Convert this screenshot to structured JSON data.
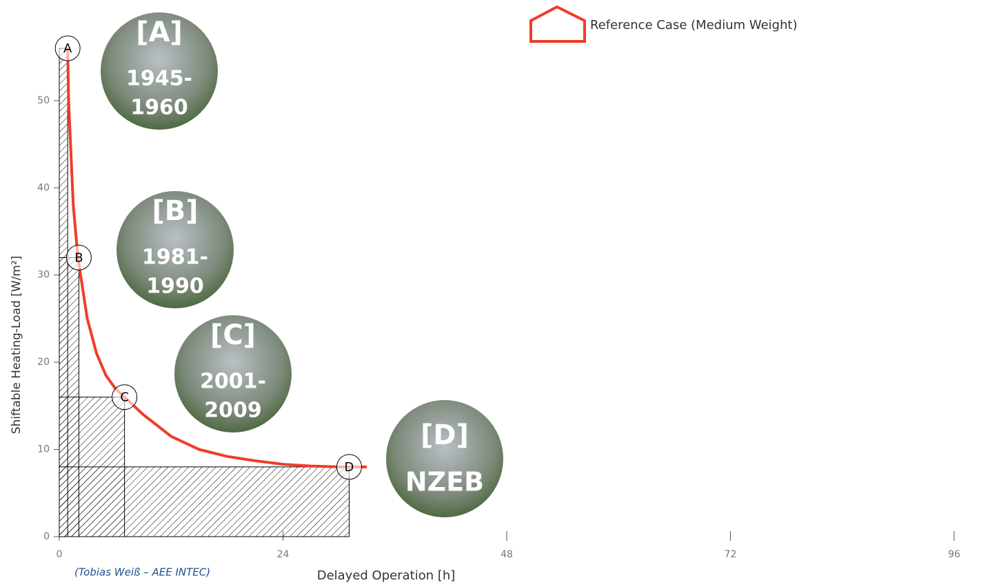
{
  "chart_data": {
    "type": "line",
    "xlabel": "Delayed Operation [h]",
    "ylabel": "Shiftable Heating-Load [W/m²]",
    "xlim": [
      0,
      96
    ],
    "xticks": [
      0,
      24,
      48,
      72,
      96
    ],
    "ylim": [
      0,
      56
    ],
    "yticks": [
      0,
      10,
      20,
      30,
      40,
      50
    ],
    "series": [
      {
        "name": "Reference Case (Medium Weight)",
        "color": "#f03c28",
        "x": [
          0.9,
          1,
          1.5,
          2,
          3,
          4,
          5,
          6,
          7,
          9,
          12,
          15,
          18,
          21,
          24,
          27,
          30,
          33
        ],
        "values": [
          56,
          50,
          38,
          32,
          25,
          21,
          18.5,
          17,
          16,
          14,
          11.5,
          10,
          9.2,
          8.7,
          8.3,
          8.1,
          8.0,
          8.0
        ]
      }
    ],
    "points": [
      {
        "label": "A",
        "x": 0.9,
        "y": 56
      },
      {
        "label": "B",
        "x": 2.1,
        "y": 32
      },
      {
        "label": "C",
        "x": 7,
        "y": 16
      },
      {
        "label": "D",
        "x": 31.1,
        "y": 8
      }
    ],
    "photos": [
      {
        "tag": "[A]",
        "lines": [
          "1945-",
          "1960"
        ]
      },
      {
        "tag": "[B]",
        "lines": [
          "1981-",
          "1990"
        ]
      },
      {
        "tag": "[C]",
        "lines": [
          "2001-",
          "2009"
        ]
      },
      {
        "tag": "[D]",
        "lines": [
          "NZEB"
        ]
      }
    ],
    "credit": "(Tobias Weiß – AEE INTEC)"
  }
}
